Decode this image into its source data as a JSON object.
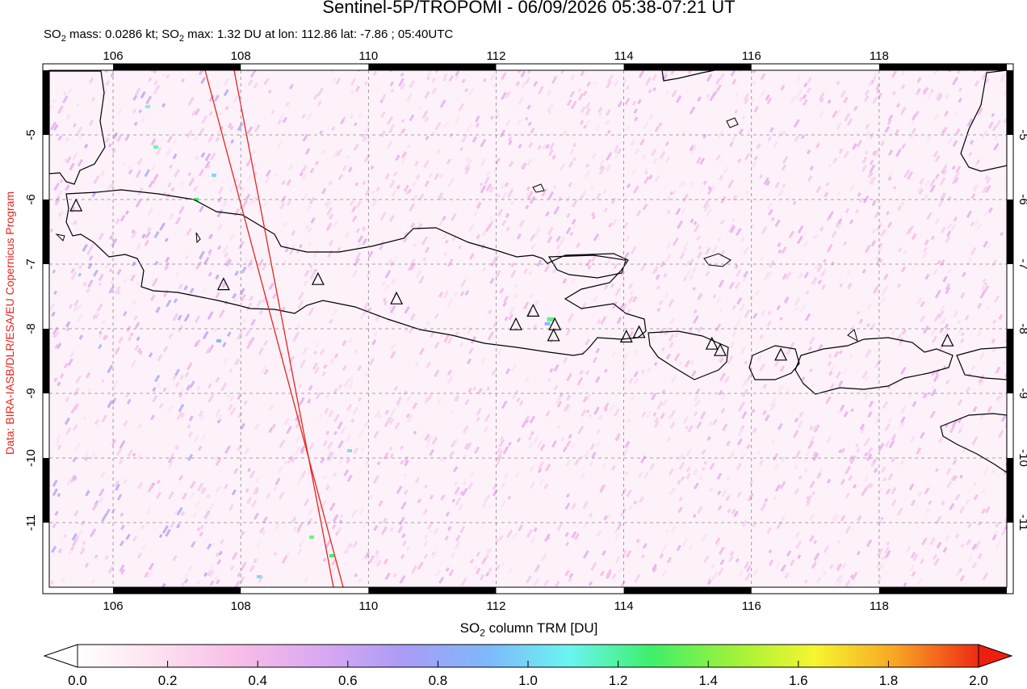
{
  "title": "Sentinel-5P/TROPOMI - 06/09/2026 05:38-07:21 UT",
  "subtitle": {
    "part1": "SO",
    "sub1": "2",
    "part2": " mass: 0.0286 kt; SO",
    "sub2": "2",
    "part3": " max: 1.32 DU at lon: 112.86 lat: -7.86 ; 05:40UTC"
  },
  "credit": "Data: BIRA-IASB/DLR/ESA/EU Copernicus Program",
  "map": {
    "lon_range": [
      105,
      120
    ],
    "lat_range": [
      -12,
      -4
    ],
    "x_ticks": [
      "106",
      "108",
      "110",
      "112",
      "114",
      "116",
      "118"
    ],
    "y_ticks": [
      "-5",
      "-6",
      "-7",
      "-8",
      "-9",
      "-10",
      "-11"
    ],
    "volcanoes": [
      {
        "lon": 105.42,
        "lat": -6.1
      },
      {
        "lon": 107.73,
        "lat": -7.32
      },
      {
        "lon": 109.21,
        "lat": -7.24
      },
      {
        "lon": 110.44,
        "lat": -7.54
      },
      {
        "lon": 112.31,
        "lat": -7.94
      },
      {
        "lon": 112.58,
        "lat": -7.73
      },
      {
        "lon": 112.92,
        "lat": -7.94
      },
      {
        "lon": 112.9,
        "lat": -8.11
      },
      {
        "lon": 114.04,
        "lat": -8.13
      },
      {
        "lon": 114.24,
        "lat": -8.06
      },
      {
        "lon": 115.38,
        "lat": -8.24
      },
      {
        "lon": 115.51,
        "lat": -8.34
      },
      {
        "lon": 116.46,
        "lat": -8.41
      },
      {
        "lon": 119.07,
        "lat": -8.19
      }
    ],
    "so2_max": {
      "lon": 112.86,
      "lat": -7.86,
      "value": 1.32
    }
  },
  "colorbar": {
    "label": "SO",
    "label_sub": "2",
    "label_rest": " column TRM [DU]",
    "min": 0.0,
    "max": 2.0,
    "ticks": [
      "0.0",
      "0.2",
      "0.4",
      "0.6",
      "0.8",
      "1.0",
      "1.2",
      "1.4",
      "1.6",
      "1.8",
      "2.0"
    ],
    "colors": [
      "#ffffff",
      "#fde0ef",
      "#f7bce8",
      "#d9a8f2",
      "#a99cf5",
      "#7fb8fb",
      "#6af5f2",
      "#3ef06b",
      "#9df23a",
      "#f7f530",
      "#f7a424",
      "#f02a14"
    ]
  }
}
